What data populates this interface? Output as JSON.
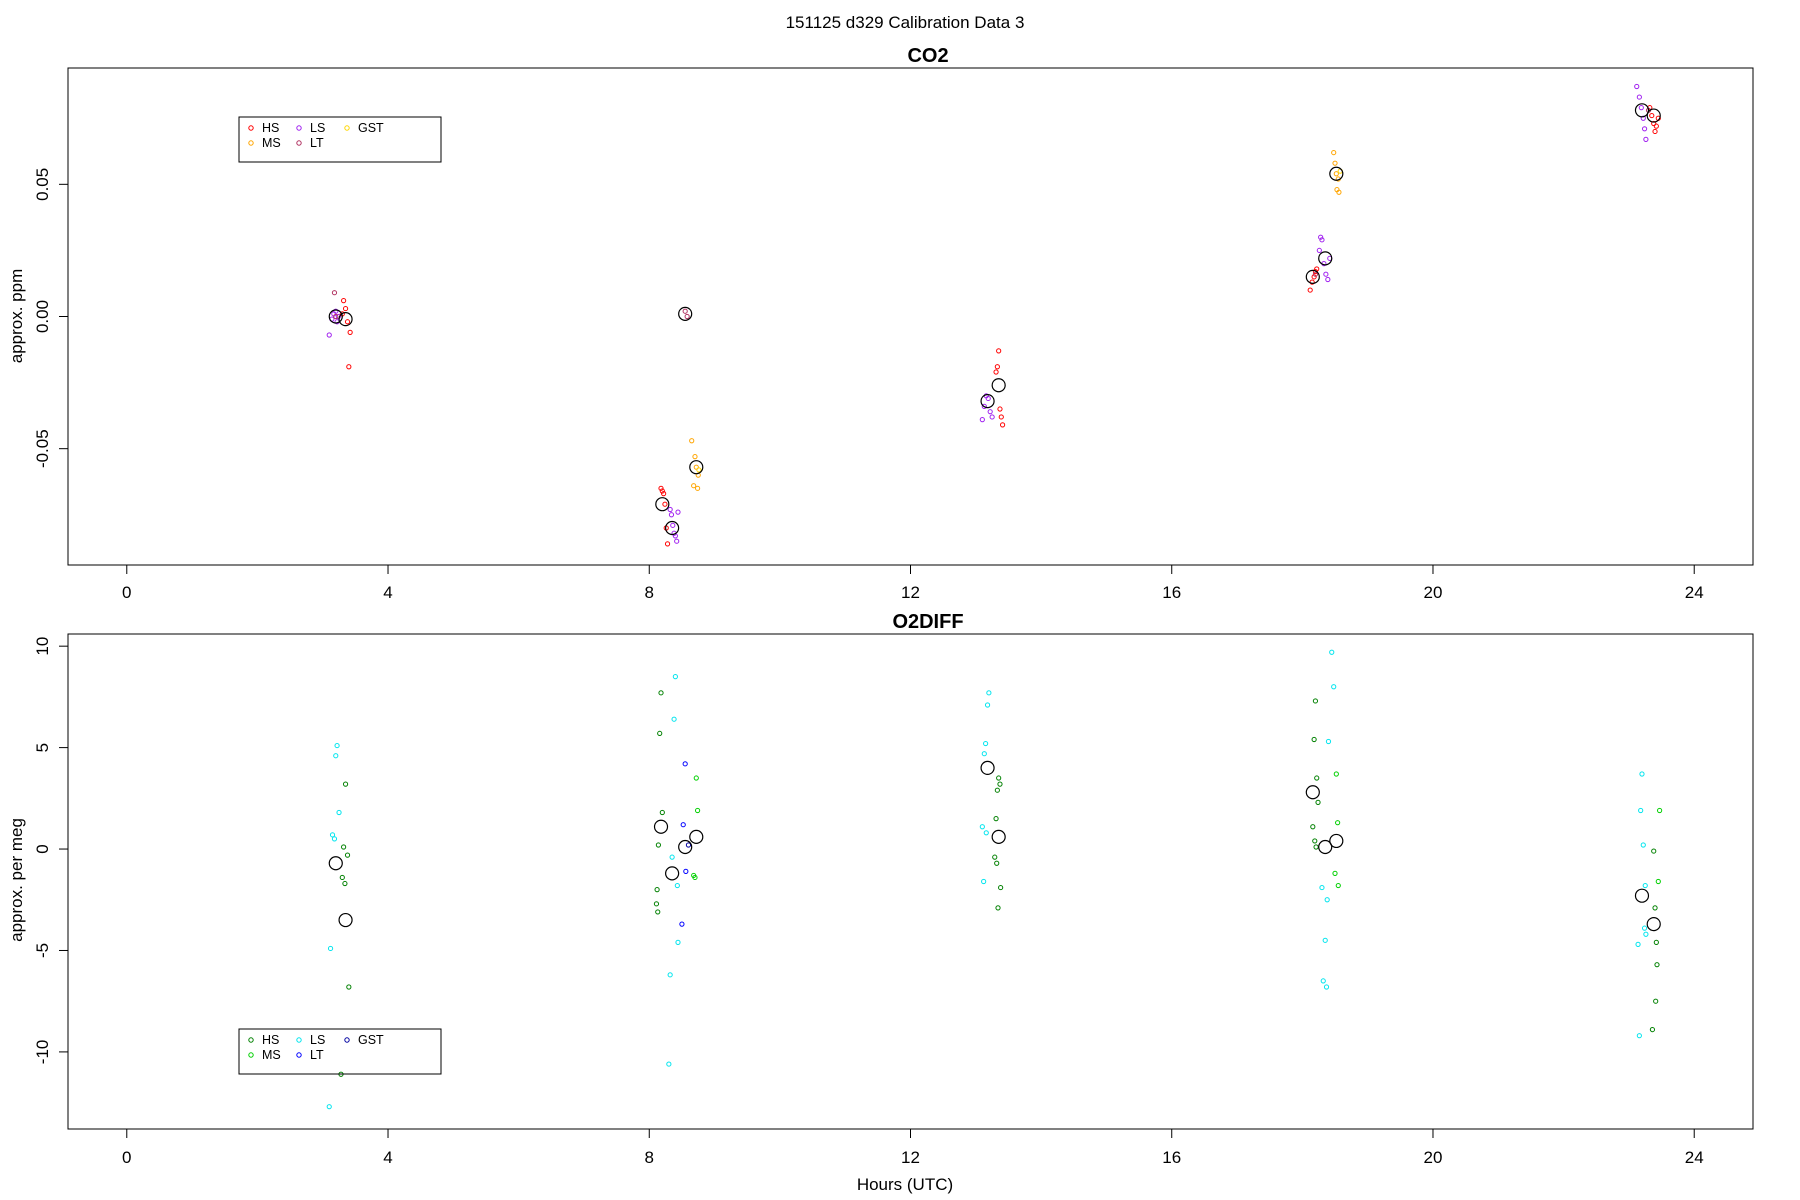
{
  "page": {
    "suptitle": "151125   d329   Calibration Data 3",
    "xlabel": "Hours (UTC)"
  },
  "chart_data": [
    {
      "type": "scatter",
      "title": "CO2",
      "xlabel": "",
      "ylabel": "approx. ppm",
      "xlim": [
        -0.9,
        24.9
      ],
      "ylim": [
        -0.094,
        0.094
      ],
      "x_ticks": [
        0,
        4,
        8,
        12,
        16,
        20,
        24
      ],
      "y_ticks": [
        -0.05,
        0.0,
        0.05
      ],
      "y_tick_labels": [
        "-0.05",
        "0.00",
        "0.05"
      ],
      "legend": {
        "placement": "top-left",
        "entries": [
          {
            "label": "HS",
            "color": "#ff0000"
          },
          {
            "label": "MS",
            "color": "#ffa500"
          },
          {
            "label": "LS",
            "color": "#a020f0"
          },
          {
            "label": "LT",
            "color": "#b03060"
          },
          {
            "label": "GST",
            "color": "#ffd700"
          }
        ]
      },
      "series": [
        {
          "name": "HS",
          "color": "#ff0000",
          "points": [
            [
              3.32,
              0.006
            ],
            [
              3.35,
              0.003
            ],
            [
              3.38,
              -0.002
            ],
            [
              3.42,
              -0.006
            ],
            [
              3.4,
              -0.019
            ],
            [
              3.3,
              0.001
            ],
            [
              8.18,
              -0.065
            ],
            [
              8.2,
              -0.066
            ],
            [
              8.22,
              -0.067
            ],
            [
              8.24,
              -0.071
            ],
            [
              8.26,
              -0.08
            ],
            [
              8.28,
              -0.086
            ],
            [
              13.35,
              -0.013
            ],
            [
              13.33,
              -0.019
            ],
            [
              13.31,
              -0.021
            ],
            [
              13.37,
              -0.035
            ],
            [
              13.39,
              -0.038
            ],
            [
              13.41,
              -0.041
            ],
            [
              18.12,
              0.01
            ],
            [
              18.15,
              0.013
            ],
            [
              18.18,
              0.015
            ],
            [
              18.2,
              0.017
            ],
            [
              18.22,
              0.018
            ],
            [
              23.32,
              0.079
            ],
            [
              23.35,
              0.076
            ],
            [
              23.38,
              0.073
            ],
            [
              23.4,
              0.07
            ],
            [
              23.42,
              0.072
            ],
            [
              23.45,
              0.075
            ]
          ]
        },
        {
          "name": "MS",
          "color": "#ffa500",
          "points": [
            [
              8.65,
              -0.047
            ],
            [
              8.7,
              -0.053
            ],
            [
              8.72,
              -0.057
            ],
            [
              8.75,
              -0.06
            ],
            [
              8.68,
              -0.064
            ],
            [
              8.74,
              -0.065
            ],
            [
              18.48,
              0.062
            ],
            [
              18.5,
              0.058
            ],
            [
              18.52,
              0.054
            ],
            [
              18.55,
              0.052
            ],
            [
              18.53,
              0.048
            ],
            [
              18.56,
              0.047
            ]
          ]
        },
        {
          "name": "LS",
          "color": "#a020f0",
          "points": [
            [
              3.1,
              -0.007
            ],
            [
              3.14,
              -0.001
            ],
            [
              3.17,
              0.001
            ],
            [
              3.2,
              0.002
            ],
            [
              3.22,
              -0.002
            ],
            [
              3.24,
              0.0
            ],
            [
              8.32,
              -0.073
            ],
            [
              8.34,
              -0.075
            ],
            [
              8.36,
              -0.079
            ],
            [
              8.38,
              -0.082
            ],
            [
              8.4,
              -0.083
            ],
            [
              8.42,
              -0.085
            ],
            [
              8.44,
              -0.074
            ],
            [
              13.1,
              -0.039
            ],
            [
              13.13,
              -0.034
            ],
            [
              13.16,
              -0.03
            ],
            [
              13.19,
              -0.031
            ],
            [
              13.22,
              -0.036
            ],
            [
              13.25,
              -0.038
            ],
            [
              18.26,
              0.025
            ],
            [
              18.28,
              0.03
            ],
            [
              18.3,
              0.029
            ],
            [
              18.33,
              0.02
            ],
            [
              18.36,
              0.016
            ],
            [
              18.39,
              0.014
            ],
            [
              18.42,
              0.022
            ],
            [
              23.12,
              0.087
            ],
            [
              23.16,
              0.083
            ],
            [
              23.19,
              0.079
            ],
            [
              23.22,
              0.075
            ],
            [
              23.24,
              0.071
            ],
            [
              23.26,
              0.067
            ]
          ]
        },
        {
          "name": "LT",
          "color": "#b03060",
          "points": [
            [
              3.18,
              0.009
            ],
            [
              3.2,
              0.0
            ],
            [
              8.55,
              0.002
            ],
            [
              8.58,
              0.0
            ],
            [
              18.2,
              0.016
            ],
            [
              23.3,
              0.078
            ]
          ]
        },
        {
          "name": "GST",
          "color": "#ffd700",
          "points": [
            [
              8.76,
              -0.058
            ],
            [
              18.58,
              0.055
            ]
          ]
        }
      ],
      "means": [
        [
          3.2,
          0.0
        ],
        [
          3.35,
          -0.001
        ],
        [
          8.2,
          -0.071
        ],
        [
          8.35,
          -0.08
        ],
        [
          8.55,
          0.001
        ],
        [
          8.72,
          -0.057
        ],
        [
          13.18,
          -0.032
        ],
        [
          13.35,
          -0.026
        ],
        [
          18.16,
          0.015
        ],
        [
          18.35,
          0.022
        ],
        [
          18.52,
          0.054
        ],
        [
          23.2,
          0.078
        ],
        [
          23.38,
          0.076
        ]
      ]
    },
    {
      "type": "scatter",
      "title": "O2DIFF",
      "xlabel": "Hours (UTC)",
      "ylabel": "approx. per meg",
      "xlim": [
        -0.9,
        24.9
      ],
      "ylim": [
        -13.8,
        10.6
      ],
      "x_ticks": [
        0,
        4,
        8,
        12,
        16,
        20,
        24
      ],
      "y_ticks": [
        -10,
        -5,
        0,
        5,
        10
      ],
      "y_tick_labels": [
        "-10",
        "-5",
        "0",
        "5",
        "10"
      ],
      "legend": {
        "placement": "bottom-left",
        "entries": [
          {
            "label": "HS",
            "color": "#008000"
          },
          {
            "label": "MS",
            "color": "#00d000"
          },
          {
            "label": "LS",
            "color": "#00e5ee"
          },
          {
            "label": "LT",
            "color": "#0000ff"
          },
          {
            "label": "GST",
            "color": "#0000a0"
          }
        ]
      },
      "series": [
        {
          "name": "HS",
          "color": "#008000",
          "points": [
            [
              3.35,
              3.2
            ],
            [
              3.32,
              0.1
            ],
            [
              3.38,
              -0.3
            ],
            [
              3.3,
              -1.4
            ],
            [
              3.34,
              -1.7
            ],
            [
              3.4,
              -6.8
            ],
            [
              3.28,
              -11.1
            ],
            [
              8.18,
              7.7
            ],
            [
              8.16,
              5.7
            ],
            [
              8.2,
              1.8
            ],
            [
              8.14,
              0.2
            ],
            [
              8.12,
              -2.0
            ],
            [
              8.11,
              -2.7
            ],
            [
              8.13,
              -3.1
            ],
            [
              13.35,
              3.5
            ],
            [
              13.37,
              3.2
            ],
            [
              13.33,
              2.9
            ],
            [
              13.31,
              1.5
            ],
            [
              13.29,
              -0.4
            ],
            [
              13.32,
              -0.7
            ],
            [
              13.38,
              -1.9
            ],
            [
              13.34,
              -2.9
            ],
            [
              18.2,
              7.3
            ],
            [
              18.18,
              5.4
            ],
            [
              18.22,
              3.5
            ],
            [
              18.24,
              2.3
            ],
            [
              18.16,
              1.1
            ],
            [
              18.19,
              0.4
            ],
            [
              18.21,
              0.1
            ],
            [
              23.38,
              -0.1
            ],
            [
              23.4,
              -2.9
            ],
            [
              23.42,
              -4.6
            ],
            [
              23.43,
              -5.7
            ],
            [
              23.41,
              -7.5
            ],
            [
              23.36,
              -8.9
            ]
          ]
        },
        {
          "name": "MS",
          "color": "#00d000",
          "points": [
            [
              8.72,
              3.5
            ],
            [
              8.74,
              1.9
            ],
            [
              8.7,
              -1.4
            ],
            [
              8.68,
              -1.3
            ],
            [
              18.52,
              3.7
            ],
            [
              18.54,
              1.3
            ],
            [
              18.5,
              -1.2
            ],
            [
              18.55,
              -1.8
            ],
            [
              23.47,
              1.9
            ],
            [
              23.45,
              -1.6
            ]
          ]
        },
        {
          "name": "LS",
          "color": "#00e5ee",
          "points": [
            [
              3.22,
              5.1
            ],
            [
              3.2,
              4.6
            ],
            [
              3.25,
              1.8
            ],
            [
              3.15,
              0.7
            ],
            [
              3.18,
              0.5
            ],
            [
              3.12,
              -4.9
            ],
            [
              3.1,
              -12.7
            ],
            [
              8.4,
              8.5
            ],
            [
              8.38,
              6.4
            ],
            [
              8.35,
              -0.4
            ],
            [
              8.43,
              -1.8
            ],
            [
              8.44,
              -4.6
            ],
            [
              8.32,
              -6.2
            ],
            [
              8.3,
              -10.6
            ],
            [
              13.2,
              7.7
            ],
            [
              13.18,
              7.1
            ],
            [
              13.15,
              5.2
            ],
            [
              13.13,
              4.7
            ],
            [
              13.1,
              1.1
            ],
            [
              13.16,
              0.8
            ],
            [
              13.12,
              -1.6
            ],
            [
              18.45,
              9.7
            ],
            [
              18.48,
              8.0
            ],
            [
              18.4,
              5.3
            ],
            [
              18.3,
              -1.9
            ],
            [
              18.38,
              -2.5
            ],
            [
              18.35,
              -4.5
            ],
            [
              18.32,
              -6.5
            ],
            [
              18.37,
              -6.8
            ],
            [
              23.2,
              3.7
            ],
            [
              23.18,
              1.9
            ],
            [
              23.22,
              0.2
            ],
            [
              23.25,
              -1.8
            ],
            [
              23.24,
              -3.9
            ],
            [
              23.26,
              -4.2
            ],
            [
              23.14,
              -4.7
            ],
            [
              23.16,
              -9.2
            ]
          ]
        },
        {
          "name": "LT",
          "color": "#0000ff",
          "points": [
            [
              8.55,
              4.2
            ],
            [
              8.52,
              1.2
            ],
            [
              8.56,
              -1.1
            ],
            [
              8.5,
              -3.7
            ]
          ]
        },
        {
          "name": "GST",
          "color": "#0000a0",
          "points": [
            [
              8.6,
              0.2
            ]
          ]
        }
      ],
      "means": [
        [
          3.2,
          -0.7
        ],
        [
          3.35,
          -3.5
        ],
        [
          8.18,
          1.1
        ],
        [
          8.35,
          -1.2
        ],
        [
          8.55,
          0.1
        ],
        [
          8.72,
          0.6
        ],
        [
          13.18,
          4.0
        ],
        [
          13.35,
          0.6
        ],
        [
          18.16,
          2.8
        ],
        [
          18.35,
          0.1
        ],
        [
          18.52,
          0.4
        ],
        [
          23.2,
          -2.3
        ],
        [
          23.38,
          -3.7
        ]
      ]
    }
  ]
}
